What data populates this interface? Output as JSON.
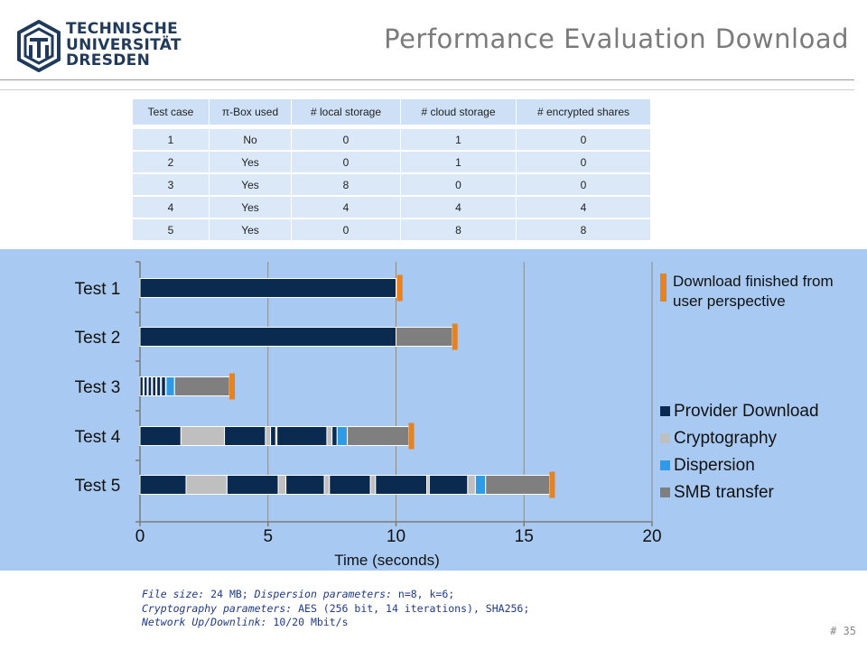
{
  "header": {
    "logo_lines": [
      "TECHNISCHE",
      "UNIVERSITÄT",
      "DRESDEN"
    ],
    "title": "Performance Evaluation Download"
  },
  "table": {
    "columns": [
      "Test case",
      "π-Box used",
      "# local storage",
      "# cloud storage",
      "# encrypted shares"
    ],
    "rows": [
      [
        "1",
        "No",
        "0",
        "1",
        "0"
      ],
      [
        "2",
        "Yes",
        "0",
        "1",
        "0"
      ],
      [
        "3",
        "Yes",
        "8",
        "0",
        "0"
      ],
      [
        "4",
        "Yes",
        "4",
        "4",
        "4"
      ],
      [
        "5",
        "Yes",
        "0",
        "8",
        "8"
      ]
    ]
  },
  "chart_data": {
    "type": "bar",
    "orientation": "horizontal-stacked",
    "categories": [
      "Test 1",
      "Test 2",
      "Test 3",
      "Test 4",
      "Test 5"
    ],
    "xlabel": "Time (seconds)",
    "xlim": [
      0,
      20
    ],
    "xticks": [
      0,
      5,
      10,
      15,
      20
    ],
    "grid": "vertical",
    "legend_position": "right",
    "colors": {
      "Provider Download": "#0a2a4f",
      "Cryptography": "#bfbfbf",
      "Dispersion": "#2f9be8",
      "SMB transfer": "#7f7f7f",
      "finish_marker": "#e8821e"
    },
    "finish_legend": "Download finished from user perspective",
    "series_legend": [
      "Provider Download",
      "Cryptography",
      "Dispersion",
      "SMB transfer"
    ],
    "bars": [
      {
        "label": "Test 1",
        "finish": 10.15,
        "segments": [
          {
            "series": "Provider Download",
            "start": 0,
            "end": 10.0
          }
        ]
      },
      {
        "label": "Test 2",
        "finish": 12.3,
        "segments": [
          {
            "series": "Provider Download",
            "start": 0,
            "end": 10.0
          },
          {
            "series": "SMB transfer",
            "start": 10.0,
            "end": 12.2
          }
        ]
      },
      {
        "label": "Test 3",
        "finish": 3.6,
        "segments": [
          {
            "series": "Provider Download",
            "start": 0.0,
            "end": 0.12
          },
          {
            "series": "Provider Download",
            "start": 0.16,
            "end": 0.28
          },
          {
            "series": "Provider Download",
            "start": 0.32,
            "end": 0.45
          },
          {
            "series": "Provider Download",
            "start": 0.49,
            "end": 0.62
          },
          {
            "series": "Provider Download",
            "start": 0.66,
            "end": 0.8
          },
          {
            "series": "Provider Download",
            "start": 0.84,
            "end": 1.0
          },
          {
            "series": "Cryptography",
            "start": 1.0,
            "end": 1.02
          },
          {
            "series": "Dispersion",
            "start": 1.02,
            "end": 1.35
          },
          {
            "series": "SMB transfer",
            "start": 1.35,
            "end": 3.5
          }
        ]
      },
      {
        "label": "Test 4",
        "finish": 10.6,
        "segments": [
          {
            "series": "Provider Download",
            "start": 0,
            "end": 1.6
          },
          {
            "series": "Cryptography",
            "start": 1.6,
            "end": 3.3
          },
          {
            "series": "Provider Download",
            "start": 3.3,
            "end": 4.9
          },
          {
            "series": "Cryptography",
            "start": 4.9,
            "end": 5.1
          },
          {
            "series": "Provider Download",
            "start": 5.1,
            "end": 5.3
          },
          {
            "series": "Provider Download",
            "start": 5.35,
            "end": 7.3
          },
          {
            "series": "Cryptography",
            "start": 7.3,
            "end": 7.5
          },
          {
            "series": "Provider Download",
            "start": 7.5,
            "end": 7.7
          },
          {
            "series": "Dispersion",
            "start": 7.7,
            "end": 8.1
          },
          {
            "series": "SMB transfer",
            "start": 8.1,
            "end": 10.5
          }
        ]
      },
      {
        "label": "Test 5",
        "finish": 16.1,
        "segments": [
          {
            "series": "Provider Download",
            "start": 0,
            "end": 1.8
          },
          {
            "series": "Cryptography",
            "start": 1.8,
            "end": 3.4
          },
          {
            "series": "Provider Download",
            "start": 3.4,
            "end": 5.4
          },
          {
            "series": "Cryptography",
            "start": 5.4,
            "end": 5.7
          },
          {
            "series": "Provider Download",
            "start": 5.7,
            "end": 7.2
          },
          {
            "series": "Cryptography",
            "start": 7.2,
            "end": 7.4
          },
          {
            "series": "Provider Download",
            "start": 7.4,
            "end": 9.0
          },
          {
            "series": "Cryptography",
            "start": 9.0,
            "end": 9.2
          },
          {
            "series": "Provider Download",
            "start": 9.2,
            "end": 11.2
          },
          {
            "series": "Cryptography",
            "start": 11.2,
            "end": 11.3
          },
          {
            "series": "Provider Download",
            "start": 11.3,
            "end": 12.8
          },
          {
            "series": "Cryptography",
            "start": 12.8,
            "end": 13.1
          },
          {
            "series": "Dispersion",
            "start": 13.1,
            "end": 13.5
          },
          {
            "series": "SMB transfer",
            "start": 13.5,
            "end": 16.0
          }
        ]
      }
    ]
  },
  "footnote": {
    "line1_label1": "File size:",
    "line1_value1": " 24 MB; ",
    "line1_label2": "Dispersion parameters:",
    "line1_value2": " n=8, k=6;",
    "line2_label": "Cryptography parameters:",
    "line2_value": " AES (256 bit, 14 iterations), SHA256;",
    "line3_label": "Network Up/Downlink:",
    "line3_value": " 10/20 Mbit/s"
  },
  "page_number": "# 35"
}
